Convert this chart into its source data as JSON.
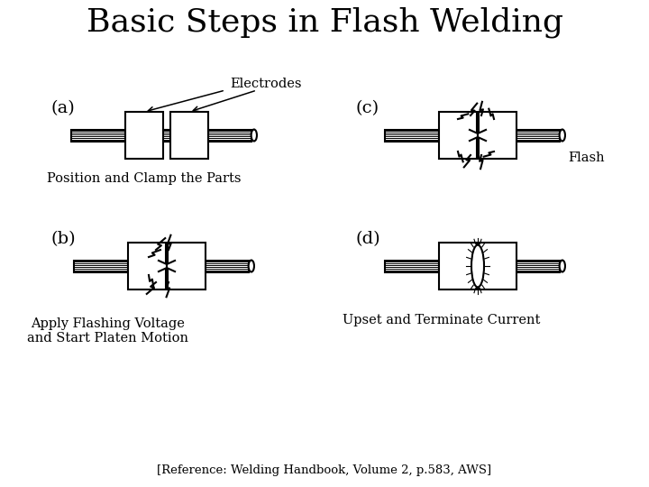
{
  "title": "Basic Steps in Flash Welding",
  "title_fontsize": 26,
  "title_font": "serif",
  "bg_color": "#ffffff",
  "line_color": "#000000",
  "labels": {
    "a": "(a)",
    "b": "(b)",
    "c": "(c)",
    "d": "(d)"
  },
  "annotations": {
    "electrodes": "Electrodes",
    "position": "Position and Clamp the Parts",
    "flash": "Flash",
    "apply": "Apply Flashing Voltage\nand Start Platen Motion",
    "upset": "Upset and Terminate Current",
    "reference": "[Reference: Welding Handbook, Volume 2, p.583, AWS]"
  },
  "figure_size": [
    7.2,
    5.4
  ],
  "dpi": 100
}
